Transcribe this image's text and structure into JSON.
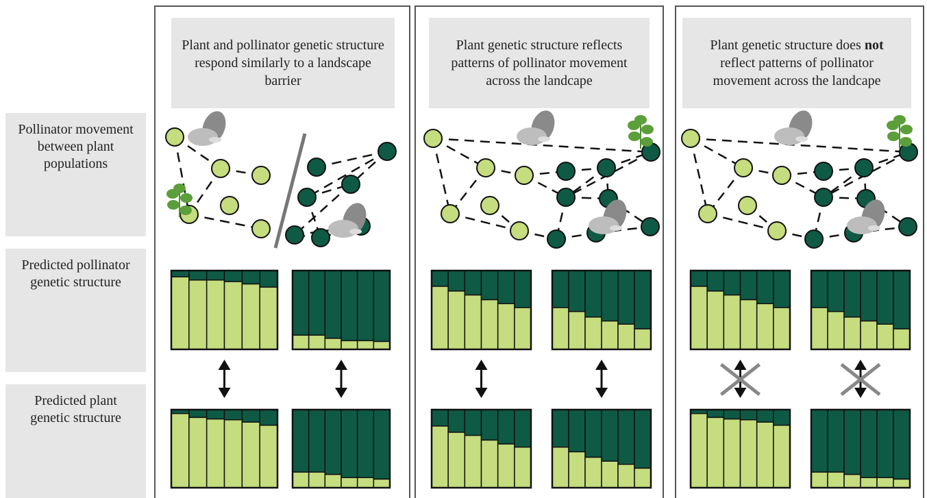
{
  "row_labels": [
    "Pollinator movement between plant populations",
    "Predicted pollinator genetic structure",
    "Predicted plant genetic structure"
  ],
  "panels": [
    {
      "title": "Plant and pollinator genetic structure respond similarly to a landscape barrier",
      "barrier": true,
      "arrows_crossed": false,
      "pollinator_structure": [
        [
          0.92,
          0.88,
          0.88,
          0.86,
          0.83,
          0.79
        ],
        [
          0.18,
          0.18,
          0.14,
          0.11,
          0.11,
          0.1
        ]
      ],
      "plant_structure": [
        [
          0.95,
          0.9,
          0.88,
          0.87,
          0.84,
          0.8
        ],
        [
          0.2,
          0.2,
          0.17,
          0.13,
          0.13,
          0.11
        ]
      ]
    },
    {
      "title": "Plant genetic structure reflects patterns of pollinator movement across the landcape",
      "barrier": false,
      "arrows_crossed": false,
      "pollinator_structure": [
        [
          0.8,
          0.74,
          0.69,
          0.63,
          0.58,
          0.53
        ],
        [
          0.53,
          0.48,
          0.41,
          0.36,
          0.32,
          0.26
        ]
      ],
      "plant_structure": [
        [
          0.79,
          0.71,
          0.67,
          0.61,
          0.56,
          0.52
        ],
        [
          0.52,
          0.46,
          0.39,
          0.34,
          0.3,
          0.25
        ]
      ]
    },
    {
      "title_before": "Plant genetic structure does",
      "title_emphasis": "not",
      "title_after": "reflect patterns of pollinator movement across the landcape",
      "barrier": false,
      "arrows_crossed": true,
      "pollinator_structure": [
        [
          0.8,
          0.74,
          0.69,
          0.63,
          0.58,
          0.53
        ],
        [
          0.53,
          0.48,
          0.41,
          0.36,
          0.32,
          0.26
        ]
      ],
      "plant_structure": [
        [
          0.95,
          0.9,
          0.88,
          0.87,
          0.84,
          0.8
        ],
        [
          0.2,
          0.2,
          0.17,
          0.13,
          0.13,
          0.11
        ]
      ]
    }
  ]
}
